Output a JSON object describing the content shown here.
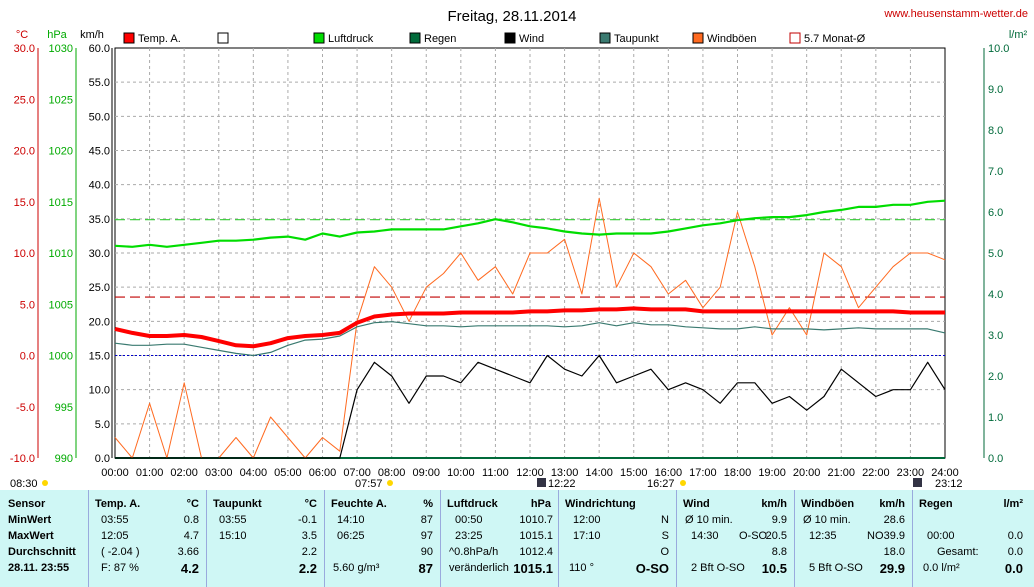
{
  "header": {
    "title": "Freitag, 28.11.2014",
    "site": "www.heusenstamm-wetter.de"
  },
  "colors": {
    "temp": "#ff0000",
    "pressure": "#00dd00",
    "rain": "#006a3a",
    "wind": "#000000",
    "dewpoint": "#3a7a70",
    "gust": "#ff6a20",
    "avg5": "#c00000",
    "axis_temp": "#cc0000",
    "axis_pressure": "#00aa00",
    "axis_rain": "#006a3a",
    "table_bg": "#cff7f5"
  },
  "chart_data": {
    "type": "line",
    "title": "Freitag, 28.11.2014",
    "axes": {
      "temp_unit": "°C",
      "pressure_unit": "hPa",
      "wind_unit": "km/h",
      "rain_unit": "l/m²",
      "temp_ticks": [
        "30.0",
        "25.0",
        "20.0",
        "15.0",
        "10.0",
        "5.0",
        "0.0",
        "-5.0",
        "-10.0"
      ],
      "pressure_ticks": [
        "1030",
        "1025",
        "1020",
        "1015",
        "1010",
        "1005",
        "1000",
        "995",
        "990"
      ],
      "wind_ticks": [
        "60.0",
        "55.0",
        "50.0",
        "45.0",
        "40.0",
        "35.0",
        "30.0",
        "25.0",
        "20.0",
        "15.0",
        "10.0",
        "5.0",
        "0.0"
      ],
      "rain_ticks": [
        "10.0",
        "9.0",
        "8.0",
        "7.0",
        "6.0",
        "5.0",
        "4.0",
        "3.0",
        "2.0",
        "1.0",
        "0.0"
      ],
      "x_ticks": [
        "00:00",
        "01:00",
        "02:00",
        "03:00",
        "04:00",
        "05:00",
        "06:00",
        "07:00",
        "08:00",
        "09:00",
        "10:00",
        "11:00",
        "12:00",
        "13:00",
        "14:00",
        "15:00",
        "16:00",
        "17:00",
        "18:00",
        "19:00",
        "20:00",
        "21:00",
        "22:00",
        "23:00",
        "24:00"
      ],
      "temp_range": [
        -10,
        30
      ],
      "pressure_range": [
        990,
        1030
      ],
      "wind_range": [
        0,
        60
      ],
      "rain_range": [
        0,
        10
      ]
    },
    "legend": [
      {
        "label": "Temp. A.",
        "color": "#ff0000",
        "filled": true
      },
      {
        "label": "",
        "color": "#ffffff",
        "filled": true
      },
      {
        "label": "Luftdruck",
        "color": "#00dd00",
        "filled": true
      },
      {
        "label": "Regen",
        "color": "#006a3a",
        "filled": true
      },
      {
        "label": "Wind",
        "color": "#000000",
        "filled": true
      },
      {
        "label": "Taupunkt",
        "color": "#3a7a70",
        "filled": true
      },
      {
        "label": "Windböen",
        "color": "#ff6a20",
        "filled": true
      },
      {
        "label": "5.7 Monat-Ø",
        "color": "#c00000",
        "filled": false
      }
    ],
    "reference_lines": {
      "temp_month_avg": 5.7,
      "pressure_ref": 1013.25,
      "temp_zero": 0.0
    },
    "x": [
      0,
      0.5,
      1,
      1.5,
      2,
      2.5,
      3,
      3.5,
      4,
      4.5,
      5,
      5.5,
      6,
      6.5,
      7,
      7.5,
      8,
      8.5,
      9,
      9.5,
      10,
      10.5,
      11,
      11.5,
      12,
      12.5,
      13,
      13.5,
      14,
      14.5,
      15,
      15.5,
      16,
      16.5,
      17,
      17.5,
      18,
      18.5,
      19,
      19.5,
      20,
      20.5,
      21,
      21.5,
      22,
      22.5,
      23,
      23.5,
      24
    ],
    "series": [
      {
        "name": "Temp. A.",
        "axis": "temp",
        "values": [
          2.6,
          2.2,
          1.9,
          1.9,
          2.0,
          1.8,
          1.4,
          1.0,
          0.9,
          1.2,
          1.7,
          1.9,
          2.0,
          2.2,
          3.2,
          3.8,
          4.0,
          4.1,
          4.1,
          4.1,
          4.2,
          4.2,
          4.2,
          4.2,
          4.3,
          4.3,
          4.4,
          4.4,
          4.5,
          4.5,
          4.6,
          4.5,
          4.5,
          4.5,
          4.3,
          4.3,
          4.3,
          4.3,
          4.3,
          4.3,
          4.3,
          4.3,
          4.3,
          4.3,
          4.3,
          4.3,
          4.2,
          4.2,
          4.2
        ]
      },
      {
        "name": "Taupunkt",
        "axis": "temp",
        "values": [
          1.2,
          1.0,
          1.0,
          1.1,
          1.1,
          0.8,
          0.5,
          0.2,
          0.0,
          0.3,
          1.0,
          1.5,
          1.6,
          1.9,
          2.8,
          3.2,
          3.3,
          3.1,
          2.9,
          2.9,
          2.8,
          2.9,
          2.9,
          2.9,
          2.9,
          2.9,
          2.8,
          2.9,
          3.2,
          2.9,
          3.2,
          3.0,
          3.0,
          2.8,
          2.7,
          2.6,
          2.6,
          2.8,
          2.6,
          2.6,
          2.6,
          2.5,
          2.6,
          2.7,
          2.6,
          2.6,
          2.6,
          2.6,
          2.2
        ]
      },
      {
        "name": "Luftdruck",
        "axis": "pressure",
        "values": [
          1010.7,
          1010.6,
          1010.8,
          1010.6,
          1010.8,
          1011.0,
          1011.2,
          1011.2,
          1011.3,
          1011.5,
          1011.6,
          1011.3,
          1011.9,
          1011.6,
          1012.0,
          1012.1,
          1012.3,
          1012.3,
          1012.3,
          1012.3,
          1012.6,
          1012.9,
          1013.3,
          1013.0,
          1012.6,
          1012.4,
          1012.1,
          1011.9,
          1011.8,
          1011.9,
          1011.9,
          1011.9,
          1012.1,
          1012.4,
          1012.7,
          1012.9,
          1013.2,
          1013.4,
          1013.5,
          1013.5,
          1013.7,
          1014.0,
          1014.2,
          1014.5,
          1014.5,
          1014.7,
          1014.7,
          1015.0,
          1015.1
        ]
      },
      {
        "name": "Wind",
        "axis": "wind",
        "values": [
          0,
          0,
          0,
          0,
          0,
          0,
          0,
          0,
          0,
          0,
          0,
          0,
          0,
          0,
          10,
          14,
          12,
          8,
          12,
          12,
          11,
          14,
          13,
          12,
          11,
          15,
          13,
          12,
          15,
          11,
          12,
          13,
          10,
          11,
          10,
          8,
          11,
          11,
          8,
          9,
          7,
          9,
          13,
          11,
          9,
          10,
          10,
          14,
          10
        ]
      },
      {
        "name": "Windböen",
        "axis": "wind",
        "values": [
          3,
          0,
          8,
          0,
          11,
          0,
          0,
          3,
          0,
          6,
          3,
          0,
          3,
          1,
          20,
          28,
          25,
          20,
          25,
          27,
          30,
          26,
          28,
          24,
          30,
          30,
          32,
          24,
          38,
          25,
          30,
          28,
          24,
          26,
          22,
          25,
          36,
          28,
          18,
          22,
          18,
          30,
          28,
          22,
          25,
          28,
          30,
          30,
          29
        ]
      },
      {
        "name": "Regen",
        "axis": "rain",
        "values": [
          0,
          0,
          0,
          0,
          0,
          0,
          0,
          0,
          0,
          0,
          0,
          0,
          0,
          0,
          0,
          0,
          0,
          0,
          0,
          0,
          0,
          0,
          0,
          0,
          0,
          0,
          0,
          0,
          0,
          0,
          0,
          0,
          0,
          0,
          0,
          0,
          0,
          0,
          0,
          0,
          0,
          0,
          0,
          0,
          0,
          0,
          0,
          0,
          0
        ]
      }
    ],
    "annotations": [
      {
        "text": "08:30",
        "near": "sunrise-left"
      },
      {
        "text": "07:57",
        "near": "sunrise"
      },
      {
        "text": "12:22",
        "near": "noon"
      },
      {
        "text": "16:27",
        "near": "sunset"
      },
      {
        "text": "23:12",
        "near": "moon"
      }
    ]
  },
  "table": {
    "row_labels": [
      "Sensor",
      "MinWert",
      "MaxWert",
      "Durchschnitt",
      "28.11. 23:55"
    ],
    "temp": {
      "head": "Temp. A.",
      "unit": "°C",
      "min_t": "03:55",
      "min": "0.8",
      "max_t": "12:05",
      "max": "4.7",
      "avg_t": "( -2.04 )",
      "avg": "3.66",
      "cur_t": "F: 87 %",
      "cur": "4.2"
    },
    "dew": {
      "head": "Taupunkt",
      "unit": "°C",
      "min_t": "03:55",
      "min": "-0.1",
      "max_t": "15:10",
      "max": "3.5",
      "avg": "2.2",
      "cur": "2.2"
    },
    "hum": {
      "head": "Feuchte A.",
      "unit": "%",
      "min_t": "14:10",
      "min": "87",
      "max_t": "06:25",
      "max": "97",
      "avg": "90",
      "cur_t": "5.60 g/m³",
      "cur": "87"
    },
    "press": {
      "head": "Luftdruck",
      "unit": "hPa",
      "min_t": "00:50",
      "min": "1010.7",
      "max_t": "23:25",
      "max": "1015.1",
      "avg_t": "^0.8hPa/h",
      "avg": "1012.4",
      "cur_t": "veränderlich",
      "cur": "1015.1"
    },
    "dir": {
      "head": "Windrichtung",
      "min_t": "12:00",
      "min": "N",
      "max_t": "17:10",
      "max": "S",
      "avg": "O",
      "cur_t": "110 °",
      "cur": "O-SO"
    },
    "wind": {
      "head": "Wind",
      "unit": "km/h",
      "min_t": "Ø 10 min.",
      "min": "9.9",
      "max_t": "14:30",
      "max_dir": "O-SO",
      "max": "20.5",
      "avg": "8.8",
      "cur_t": "2 Bft O-SO",
      "cur": "10.5"
    },
    "gust": {
      "head": "Windböen",
      "unit": "km/h",
      "min_t": "Ø 10 min.",
      "min": "28.6",
      "max_t": "12:35",
      "max_dir": "NO",
      "max": "39.9",
      "avg": "18.0",
      "cur_t": "5 Bft O-SO",
      "cur": "29.9"
    },
    "rain": {
      "head": "Regen",
      "unit": "l/m²",
      "max_t": "00:00",
      "max": "0.0",
      "avg_t": "Gesamt:",
      "avg": "0.0",
      "cur_t": "0.0 l/m²",
      "cur": "0.0"
    }
  }
}
